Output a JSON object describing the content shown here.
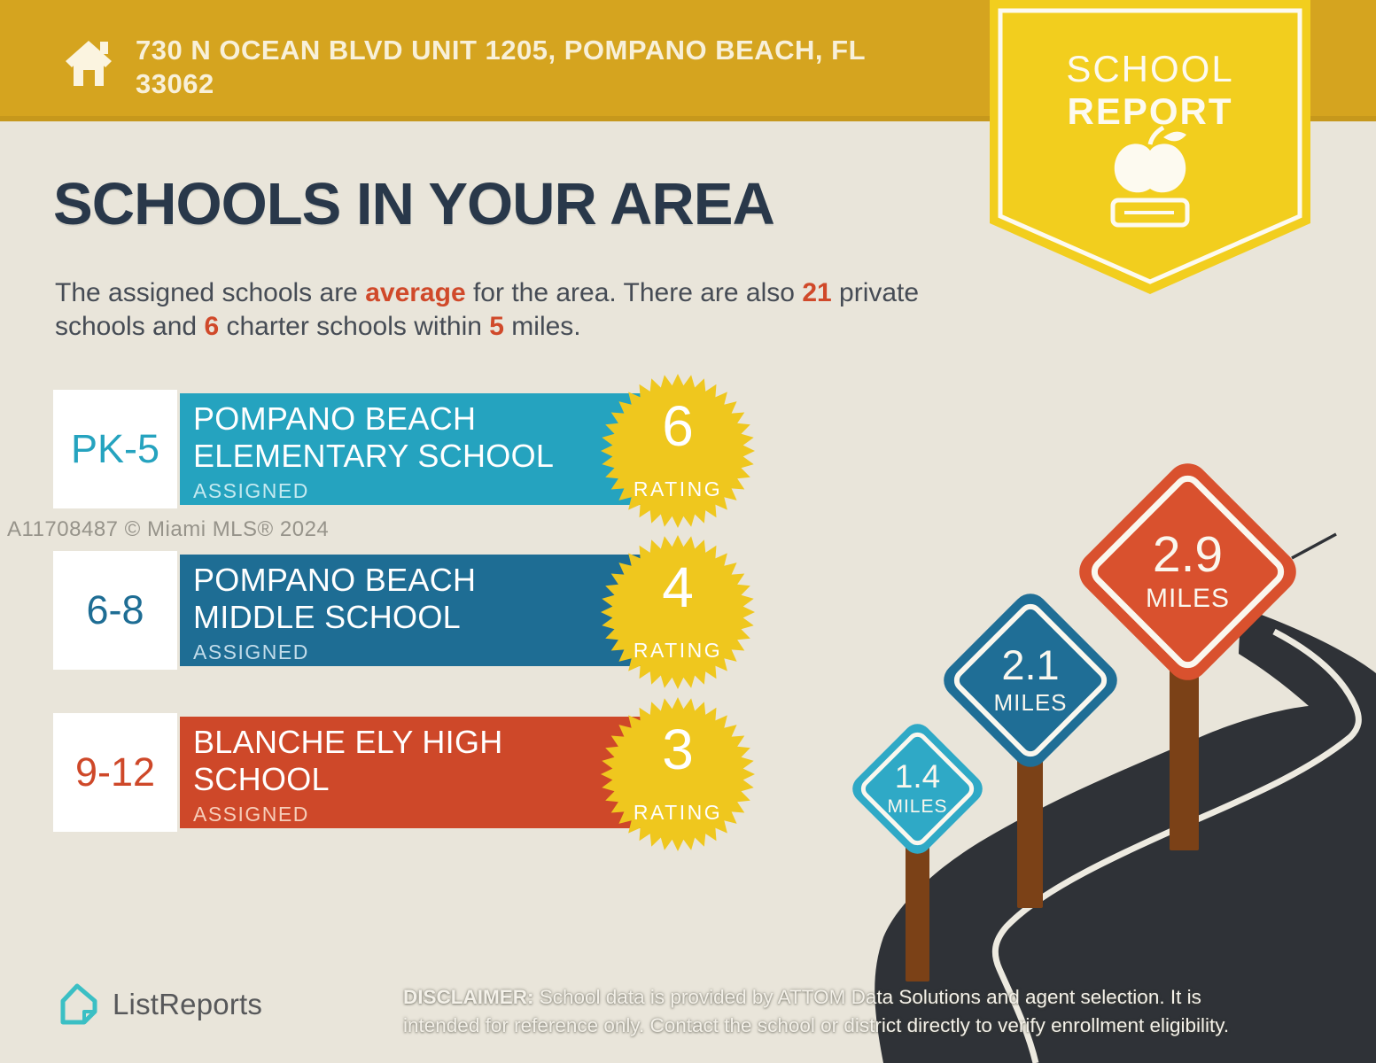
{
  "palette": {
    "gold": "#D5A41F",
    "badge_yellow": "#F2CE1E",
    "star_yellow": "#EFC71E",
    "navy": "#29384A",
    "accent_orange": "#D0492A",
    "background": "#E9E5DA",
    "road": "#2F3237",
    "road_line": "#EDEAE0",
    "post_brown": "#7B4117",
    "logo_teal": "#3BBFC4",
    "text_gray": "#57585A"
  },
  "header": {
    "address": "730 N OCEAN BLVD UNIT 1205, POMPANO BEACH, FL 33062"
  },
  "badge": {
    "line1": "SCHOOL",
    "line2": "REPORT"
  },
  "main": {
    "title": "SCHOOLS IN YOUR AREA",
    "subtitle_segments": [
      {
        "t": "The assigned schools are ",
        "hl": false
      },
      {
        "t": "average",
        "hl": true
      },
      {
        "t": " for the area. There are also ",
        "hl": false
      },
      {
        "t": "21",
        "hl": true
      },
      {
        "t": " private schools and ",
        "hl": false
      },
      {
        "t": "6",
        "hl": true
      },
      {
        "t": " charter schools within ",
        "hl": false
      },
      {
        "t": "5",
        "hl": true
      },
      {
        "t": " miles.",
        "hl": false
      }
    ]
  },
  "watermark": "A11708487 © Miami MLS® 2024",
  "schools": [
    {
      "grades": "PK-5",
      "name_lines": [
        "POMPANO BEACH",
        "ELEMENTARY SCHOOL"
      ],
      "status": "ASSIGNED",
      "rating": "6",
      "rating_label": "RATING",
      "bar_color": "#25A3BF",
      "status_color": "#C4E9F0"
    },
    {
      "grades": "6-8",
      "name_lines": [
        "POMPANO BEACH",
        "MIDDLE SCHOOL"
      ],
      "status": "ASSIGNED",
      "rating": "4",
      "rating_label": "RATING",
      "bar_color": "#1E6D94",
      "status_color": "#C2DCEA"
    },
    {
      "grades": "9-12",
      "name_lines": [
        "BLANCHE ELY HIGH",
        "SCHOOL"
      ],
      "status": "ASSIGNED",
      "rating": "3",
      "rating_label": "RATING",
      "bar_color": "#CE4829",
      "status_color": "#F6CDB9"
    }
  ],
  "signs": [
    {
      "distance": "1.4",
      "unit": "MILES",
      "color": "#2FA9C6"
    },
    {
      "distance": "2.1",
      "unit": "MILES",
      "color": "#1F6E96"
    },
    {
      "distance": "2.9",
      "unit": "MILES",
      "color": "#D9512E"
    }
  ],
  "footer": {
    "logo_text": "ListReports",
    "disclaimer_label": "DISCLAIMER:",
    "disclaimer_text": " School data is provided by ATTOM Data Solutions and agent selection. It is intended for reference only. Contact the school or district directly to verify enrollment eligibility."
  }
}
